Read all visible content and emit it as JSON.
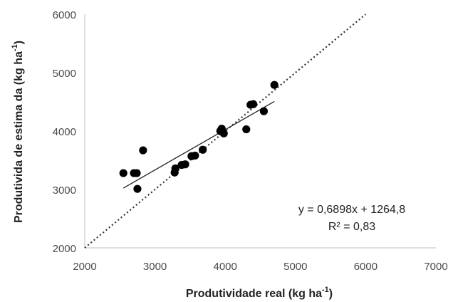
{
  "chart_data": {
    "type": "scatter",
    "xlabel": "Produtividade real (kg ha",
    "xlabel_sup": "-1",
    "xlabel_end": ")",
    "ylabel": "Produtivida de estima da (kg ha",
    "ylabel_sup": "-1",
    "ylabel_end": ")",
    "xlim": [
      2000,
      7000
    ],
    "ylim": [
      2000,
      6000
    ],
    "xticks": [
      "2000",
      "3000",
      "4000",
      "5000",
      "6000",
      "7000"
    ],
    "yticks": [
      "2000",
      "3000",
      "4000",
      "5000",
      "6000"
    ],
    "grid": false,
    "equation": "y = 0,6898x + 1264,8",
    "r_squared": "R² = 0,83",
    "trendline": {
      "slope": 0.6898,
      "intercept": 1264.8,
      "x_range": [
        2550,
        4700
      ]
    },
    "reference_line": {
      "type": "1:1",
      "from": [
        2000,
        2000
      ],
      "to": [
        6000,
        6000
      ]
    },
    "points": [
      {
        "x": 2550,
        "y": 3280
      },
      {
        "x": 2700,
        "y": 3280
      },
      {
        "x": 2740,
        "y": 3280
      },
      {
        "x": 2750,
        "y": 3010
      },
      {
        "x": 2830,
        "y": 3670
      },
      {
        "x": 3280,
        "y": 3290
      },
      {
        "x": 3290,
        "y": 3360
      },
      {
        "x": 3380,
        "y": 3420
      },
      {
        "x": 3430,
        "y": 3430
      },
      {
        "x": 3520,
        "y": 3570
      },
      {
        "x": 3570,
        "y": 3580
      },
      {
        "x": 3680,
        "y": 3680
      },
      {
        "x": 3930,
        "y": 4000
      },
      {
        "x": 3950,
        "y": 4040
      },
      {
        "x": 3980,
        "y": 3960
      },
      {
        "x": 4300,
        "y": 4030
      },
      {
        "x": 4360,
        "y": 4450
      },
      {
        "x": 4400,
        "y": 4460
      },
      {
        "x": 4550,
        "y": 4340
      },
      {
        "x": 4700,
        "y": 4790
      }
    ]
  }
}
